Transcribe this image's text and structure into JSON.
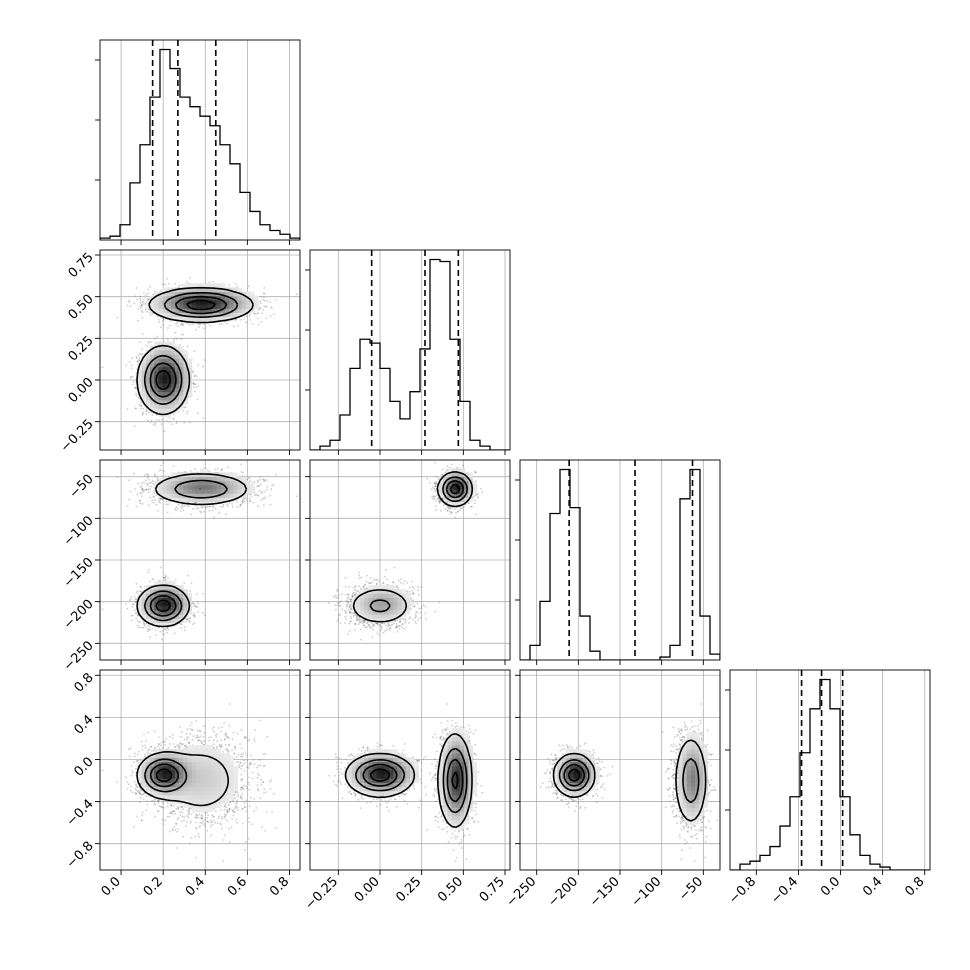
{
  "chart_data": {
    "type": "corner",
    "ndim": 4,
    "grid": true,
    "params": [
      {
        "range": [
          -0.1,
          0.85
        ],
        "ticks": [
          0.0,
          0.2,
          0.4,
          0.6,
          0.8
        ],
        "tick_labels": [
          "0.0",
          "0.2",
          "0.4",
          "0.6",
          "0.8"
        ],
        "quantiles": [
          0.15,
          0.27,
          0.45
        ]
      },
      {
        "range": [
          -0.42,
          0.78
        ],
        "ticks": [
          -0.25,
          0.0,
          0.25,
          0.5,
          0.75
        ],
        "tick_labels": [
          "−0.25",
          "0.00",
          "0.25",
          "0.50",
          "0.75"
        ],
        "quantiles": [
          -0.05,
          0.27,
          0.47
        ]
      },
      {
        "range": [
          -270,
          -30
        ],
        "ticks": [
          -250,
          -200,
          -150,
          -100,
          -50
        ],
        "tick_labels": [
          "−250",
          "−200",
          "−150",
          "−100",
          "−50"
        ],
        "quantiles": [
          -211,
          -132,
          -63
        ]
      },
      {
        "range": [
          -1.05,
          0.85
        ],
        "ticks": [
          -0.8,
          -0.4,
          0.0,
          0.4,
          0.8
        ],
        "tick_labels": [
          "−0.8",
          "−0.4",
          "0.0",
          "0.4",
          "0.8"
        ],
        "quantiles": [
          -0.37,
          -0.18,
          0.02
        ]
      }
    ],
    "histograms": [
      {
        "param": 0,
        "bins": [
          -0.1,
          0.85
        ],
        "counts": [
          1,
          2,
          8,
          30,
          50,
          75,
          100,
          90,
          75,
          70,
          65,
          60,
          50,
          40,
          25,
          15,
          8,
          5,
          3,
          1
        ]
      },
      {
        "param": 1,
        "bins": [
          -0.42,
          0.78
        ],
        "counts": [
          0,
          2,
          5,
          18,
          42,
          57,
          55,
          42,
          25,
          16,
          30,
          52,
          98,
          97,
          57,
          25,
          5,
          2,
          0,
          0
        ]
      },
      {
        "param": 2,
        "bins": [
          -270,
          -30
        ],
        "counts": [
          0,
          5,
          20,
          50,
          65,
          52,
          15,
          3,
          0,
          0,
          0,
          0,
          0,
          0,
          1,
          5,
          55,
          65,
          15,
          2
        ]
      },
      {
        "param": 3,
        "bins": [
          -1.05,
          0.85
        ],
        "counts": [
          0,
          2,
          3,
          5,
          8,
          15,
          25,
          40,
          55,
          65,
          55,
          25,
          12,
          5,
          2,
          1,
          0,
          0,
          0,
          0
        ]
      }
    ],
    "mixture": [
      {
        "weight": 0.5,
        "mean": [
          0.2,
          0.0,
          -205,
          -0.15
        ],
        "std": [
          0.06,
          0.1,
          12,
          0.1
        ]
      },
      {
        "weight": 0.5,
        "mean": [
          0.38,
          0.45,
          -65,
          -0.2
        ],
        "std": [
          0.12,
          0.05,
          10,
          0.22
        ]
      }
    ]
  }
}
